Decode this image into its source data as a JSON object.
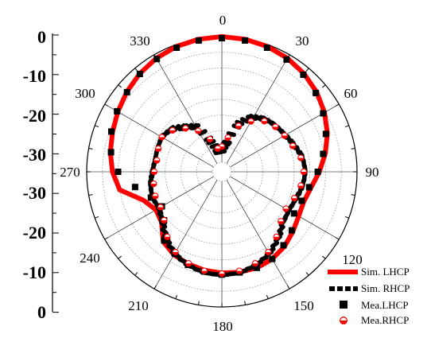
{
  "chart_data": {
    "type": "polar",
    "angular_unit": "degrees",
    "angular_zero": "top",
    "angular_direction": "clockwise",
    "angular_ticks": [
      "0",
      "30",
      "60",
      "90",
      "120",
      "150",
      "180",
      "210",
      "240",
      "270",
      "300",
      "330"
    ],
    "radial_axis_labels": [
      "0",
      "-10",
      "-20",
      "-30",
      "-30",
      "-20",
      "-10",
      "0"
    ],
    "radial_range": [
      -40,
      0
    ],
    "radial_rings": [
      -40,
      -35,
      -30,
      -25,
      -20,
      -15,
      -10,
      -5,
      0
    ],
    "grid": true,
    "legend_placement": "bottom-right",
    "colors": {
      "lhcp": "#ff0000",
      "rhcp": "#000000",
      "mea_rhcp_fill": "#ffffff"
    },
    "series": [
      {
        "name": "Sim. LHCP",
        "style": "thick-line",
        "color": "#ff0000",
        "theta": [
          0,
          10,
          20,
          30,
          40,
          50,
          60,
          70,
          80,
          90,
          100,
          110,
          120,
          130,
          140,
          150,
          160,
          170,
          180,
          190,
          200,
          210,
          220,
          230,
          240,
          250,
          260,
          270,
          280,
          290,
          300,
          310,
          320,
          330,
          340,
          350
        ],
        "r": [
          0,
          -0.2,
          -0.6,
          -1.3,
          -2.3,
          -3.6,
          -5.3,
          -7.3,
          -9.6,
          -12.0,
          -14.2,
          -15.3,
          -14.8,
          -13.5,
          -12.0,
          -11.0,
          -10.5,
          -10.6,
          -10.8,
          -11.2,
          -11.8,
          -12.5,
          -14.0,
          -18.0,
          -18.8,
          -16.5,
          -10.0,
          -8.2,
          -7.0,
          -6.0,
          -4.8,
          -3.5,
          -2.3,
          -1.3,
          -0.6,
          -0.2
        ]
      },
      {
        "name": "Sim. RHCP",
        "style": "dashed",
        "color": "#000000",
        "theta": [
          0,
          10,
          20,
          30,
          40,
          50,
          60,
          70,
          80,
          90,
          100,
          110,
          120,
          130,
          140,
          150,
          160,
          170,
          180,
          190,
          200,
          210,
          220,
          230,
          240,
          250,
          260,
          270,
          280,
          290,
          300,
          310,
          320,
          330,
          340,
          350
        ],
        "r": [
          -36.5,
          -33.5,
          -26.5,
          -23.0,
          -21.3,
          -20.5,
          -19.8,
          -18.5,
          -17.0,
          -16.5,
          -17.0,
          -18.0,
          -18.5,
          -17.8,
          -15.3,
          -13.0,
          -11.5,
          -10.5,
          -10.2,
          -10.5,
          -11.5,
          -13.0,
          -15.5,
          -18.5,
          -20.0,
          -19.5,
          -20.0,
          -21.0,
          -21.5,
          -21.3,
          -21.0,
          -22.0,
          -24.5,
          -26.5,
          -33.0,
          -36.8
        ]
      },
      {
        "name": "Mea.LHCP",
        "style": "square-markers",
        "color": "#000000",
        "theta": [
          0,
          10,
          20,
          30,
          40,
          50,
          60,
          70,
          80,
          90,
          100,
          110,
          120,
          130,
          140,
          150,
          160,
          170,
          180,
          190,
          200,
          210,
          220,
          230,
          240,
          250,
          260,
          270,
          280,
          290,
          300,
          310,
          320,
          330,
          340,
          350
        ],
        "r": [
          -0.5,
          -0.6,
          -1.0,
          -1.8,
          -2.7,
          -4.0,
          -5.8,
          -7.8,
          -10.3,
          -12.5,
          -14.8,
          -16.0,
          -16.5,
          -14.0,
          -12.5,
          -11.0,
          -10.5,
          -10.5,
          -10.3,
          -10.8,
          -11.5,
          -13.0,
          -14.5,
          -19.0,
          -21.0,
          -19.0,
          -15.0,
          -10.0,
          -7.2,
          -5.6,
          -4.5,
          -3.6,
          -2.4,
          -1.6,
          -1.0,
          -0.6
        ]
      },
      {
        "name": "Mea.RHCP",
        "style": "half-filled-circles",
        "color": "#ff0000",
        "theta": [
          0,
          10,
          20,
          30,
          40,
          50,
          60,
          70,
          80,
          90,
          100,
          110,
          120,
          130,
          140,
          150,
          160,
          170,
          180,
          190,
          200,
          210,
          220,
          230,
          240,
          250,
          260,
          270,
          280,
          290,
          300,
          310,
          320,
          330,
          340,
          350
        ],
        "r": [
          -35.0,
          -32.0,
          -27.5,
          -24.5,
          -22.0,
          -20.8,
          -20.0,
          -19.0,
          -17.5,
          -17.0,
          -17.5,
          -18.5,
          -19.5,
          -18.5,
          -16.0,
          -13.5,
          -12.0,
          -11.0,
          -10.6,
          -11.0,
          -12.0,
          -13.5,
          -16.0,
          -19.0,
          -20.5,
          -20.5,
          -21.0,
          -21.5,
          -22.0,
          -21.5,
          -21.0,
          -22.5,
          -25.0,
          -28.0,
          -32.0,
          -35.5
        ]
      }
    ]
  }
}
